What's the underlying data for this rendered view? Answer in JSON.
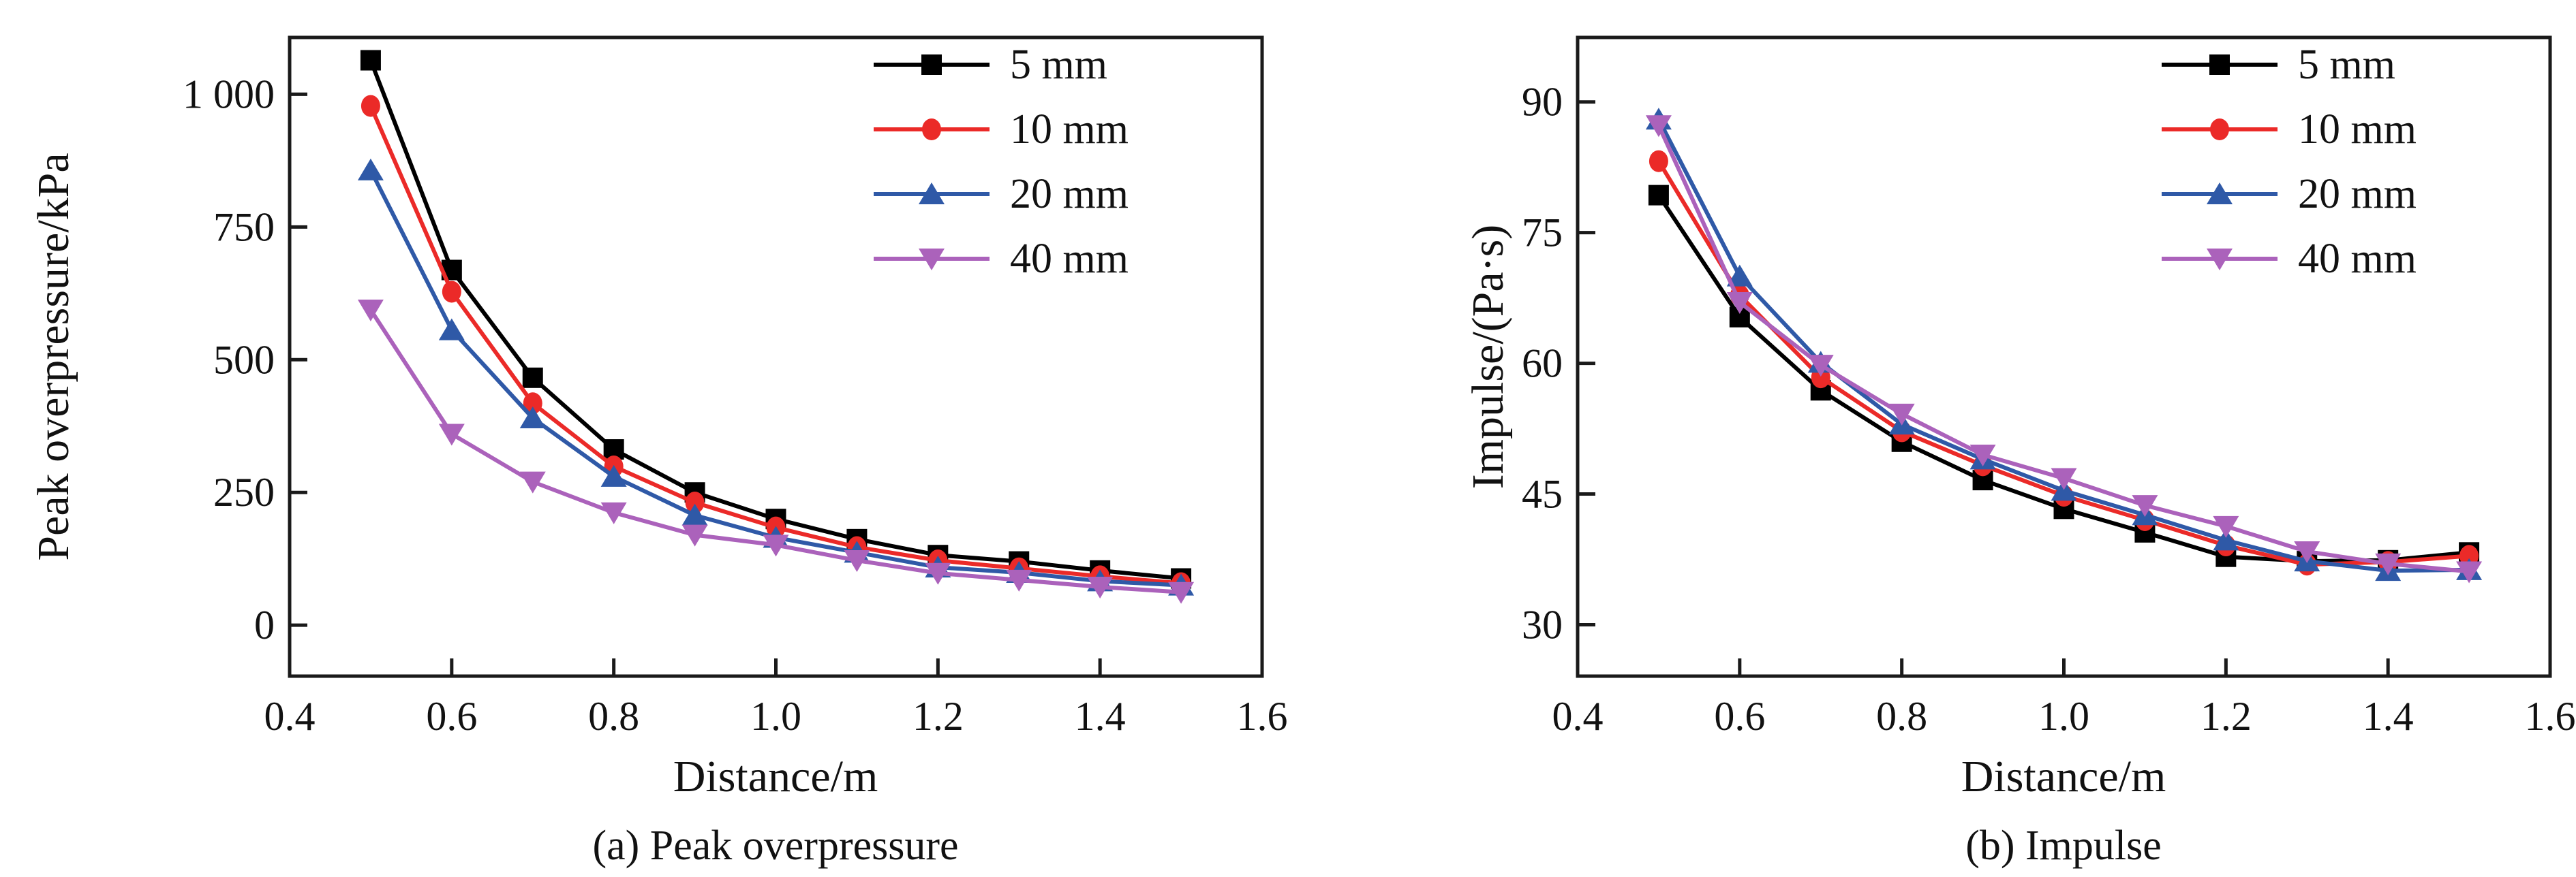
{
  "figure": {
    "background": "#ffffff",
    "text_color": "#111111"
  },
  "chart_data": [
    {
      "type": "line",
      "title": "",
      "caption": "(a) Peak overpressure",
      "xlabel": "Distance/m",
      "ylabel": "Peak overpressure/kPa",
      "grid": false,
      "legend_position": "top-right",
      "xlim": [
        0.4,
        1.6
      ],
      "ylim": [
        -96,
        1107
      ],
      "xticks": [
        0.4,
        0.6,
        0.8,
        1.0,
        1.2,
        1.4,
        1.6
      ],
      "xtick_labels": [
        "0.4",
        "0.6",
        "0.8",
        "1.0",
        "1.2",
        "1.4",
        "1.6"
      ],
      "yticks": [
        0,
        250,
        500,
        750,
        1000
      ],
      "ytick_labels": [
        "0",
        "250",
        "500",
        "750",
        "1 000"
      ],
      "x": [
        0.5,
        0.6,
        0.7,
        0.8,
        0.9,
        1.0,
        1.1,
        1.2,
        1.3,
        1.4,
        1.5
      ],
      "series": [
        {
          "name": "5 mm",
          "marker": "square",
          "color": "#000000",
          "values": [
            1064,
            669,
            466,
            331,
            250,
            200,
            162,
            132,
            120,
            103,
            88
          ]
        },
        {
          "name": "10 mm",
          "marker": "circle",
          "color": "#EB2A28",
          "values": [
            978,
            628,
            418,
            299,
            231,
            184,
            147,
            122,
            107,
            92,
            79
          ]
        },
        {
          "name": "20 mm",
          "marker": "triangle-up",
          "color": "#2F59A7",
          "values": [
            857,
            556,
            390,
            280,
            207,
            165,
            137,
            109,
            99,
            83,
            75
          ]
        },
        {
          "name": "40 mm",
          "marker": "triangle-down",
          "color": "#AB62BB",
          "values": [
            594,
            360,
            270,
            212,
            170,
            151,
            122,
            98,
            85,
            72,
            62
          ]
        }
      ]
    },
    {
      "type": "line",
      "title": "",
      "caption": "(b) Impulse",
      "xlabel": "Distance/m",
      "ylabel": "Impulse/(Pa·s)",
      "grid": false,
      "legend_position": "top-right",
      "xlim": [
        0.4,
        1.6
      ],
      "ylim": [
        24.1,
        97.4
      ],
      "xticks": [
        0.4,
        0.6,
        0.8,
        1.0,
        1.2,
        1.4,
        1.6
      ],
      "xtick_labels": [
        "0.4",
        "0.6",
        "0.8",
        "1.0",
        "1.2",
        "1.4",
        "1.6"
      ],
      "yticks": [
        30,
        45,
        60,
        75,
        90
      ],
      "ytick_labels": [
        "30",
        "45",
        "60",
        "75",
        "90"
      ],
      "x": [
        0.5,
        0.6,
        0.7,
        0.8,
        0.9,
        1.0,
        1.1,
        1.2,
        1.3,
        1.4,
        1.5
      ],
      "series": [
        {
          "name": "5 mm",
          "marker": "square",
          "color": "#000000",
          "values": [
            79.3,
            65.3,
            56.9,
            51.0,
            46.6,
            43.3,
            40.6,
            37.8,
            37.3,
            37.4,
            38.3
          ]
        },
        {
          "name": "10 mm",
          "marker": "circle",
          "color": "#EB2A28",
          "values": [
            83.2,
            67.8,
            58.4,
            52.2,
            48.3,
            44.8,
            42.0,
            39.1,
            36.9,
            37.2,
            37.9
          ]
        },
        {
          "name": "20 mm",
          "marker": "triangle-up",
          "color": "#2F59A7",
          "values": [
            88.0,
            70.0,
            60.1,
            53.0,
            49.0,
            45.4,
            42.6,
            39.7,
            37.3,
            36.2,
            36.3
          ]
        },
        {
          "name": "40 mm",
          "marker": "triangle-down",
          "color": "#AB62BB",
          "values": [
            87.3,
            67.0,
            59.8,
            54.2,
            49.5,
            46.8,
            43.7,
            41.3,
            38.4,
            37.0,
            36.1
          ]
        }
      ]
    }
  ]
}
